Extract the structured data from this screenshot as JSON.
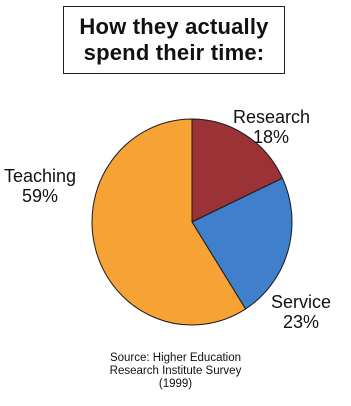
{
  "chart_data": {
    "type": "pie",
    "title": [
      "How they actually",
      "spend their time:"
    ],
    "slices": [
      {
        "label": "Research",
        "value": 18,
        "value_label": "18%",
        "color": "#9b3236"
      },
      {
        "label": "Service",
        "value": 23,
        "value_label": "23%",
        "color": "#3f7fcb"
      },
      {
        "label": "Teaching",
        "value": 59,
        "value_label": "59%",
        "color": "#f6a235"
      }
    ],
    "source": [
      "Source: Higher Education",
      "Research Institute Survey",
      "(1999)"
    ]
  }
}
